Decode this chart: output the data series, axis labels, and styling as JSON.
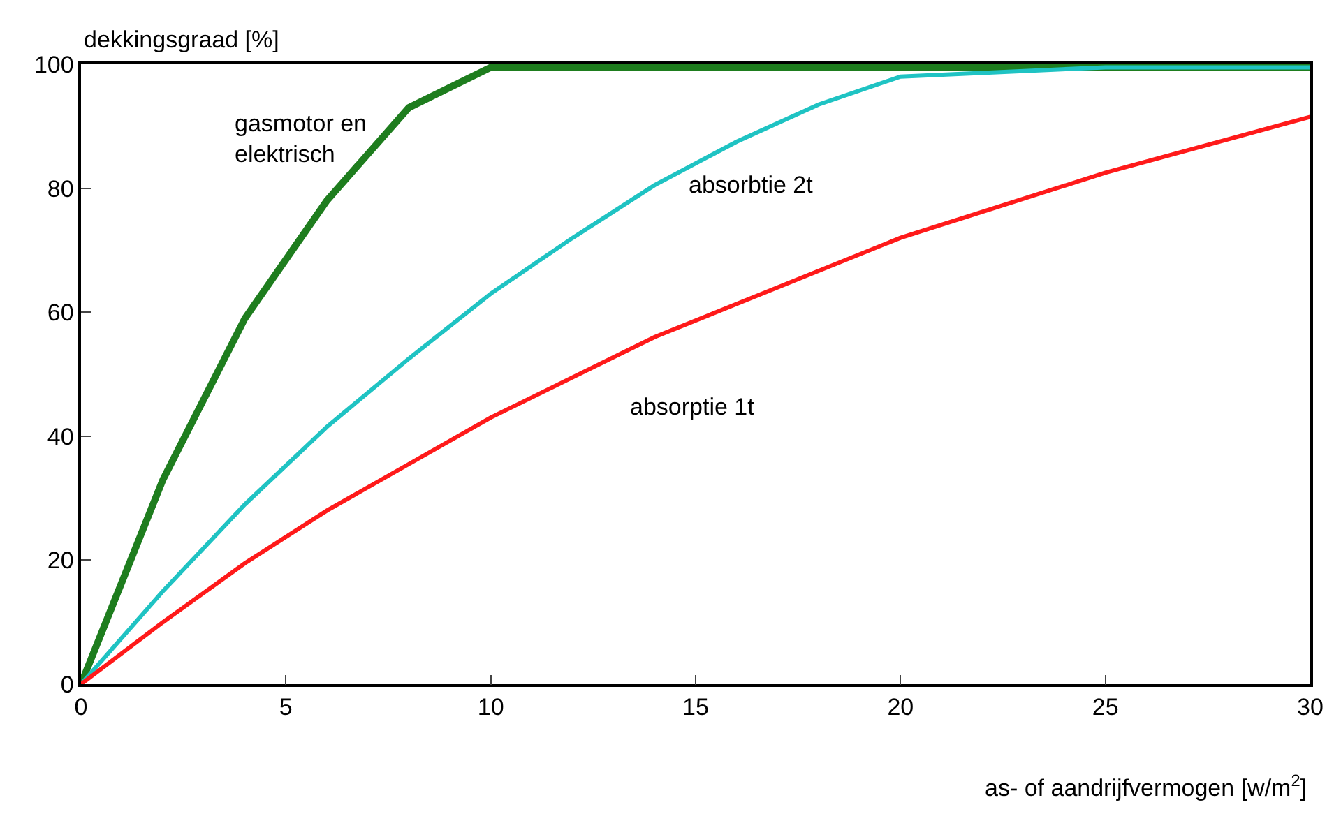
{
  "chart_data": {
    "type": "line",
    "xlabel": "as- of aandrijfvermogen [w/m$^{2}$]",
    "ylabel": "dekkingsgraad [%]",
    "xlim": [
      0,
      30
    ],
    "xticks": [
      0,
      5,
      10,
      15,
      20,
      25,
      30
    ],
    "ylim": [
      0,
      100
    ],
    "yticks": [
      0,
      20,
      40,
      60,
      80,
      100
    ],
    "grid": false,
    "legend": false,
    "marker": "none",
    "line_style": "solid",
    "series": [
      {
        "name": "gasmotor en\nelektrisch",
        "color": "#1e7d1e",
        "x": [
          0,
          2,
          4,
          6,
          8,
          10,
          30
        ],
        "values": [
          0,
          33,
          59,
          78,
          93,
          99.5,
          99.5
        ]
      },
      {
        "name": "absorbtie 2t",
        "color": "#1fc3c3",
        "x": [
          0,
          2,
          4,
          6,
          8,
          10,
          12,
          14,
          16,
          18,
          20,
          25,
          30
        ],
        "values": [
          0,
          15,
          29,
          41.5,
          52.5,
          63,
          72,
          80.5,
          87.5,
          93.5,
          98,
          99.5,
          99.5
        ]
      },
      {
        "name": "absorptie 1t",
        "color": "#ff1a1a",
        "x": [
          0,
          2,
          4,
          6,
          8,
          10,
          14,
          20,
          25,
          30
        ],
        "values": [
          0,
          10,
          19.5,
          28,
          35.5,
          43,
          56,
          72,
          82.5,
          91.5
        ]
      }
    ]
  }
}
